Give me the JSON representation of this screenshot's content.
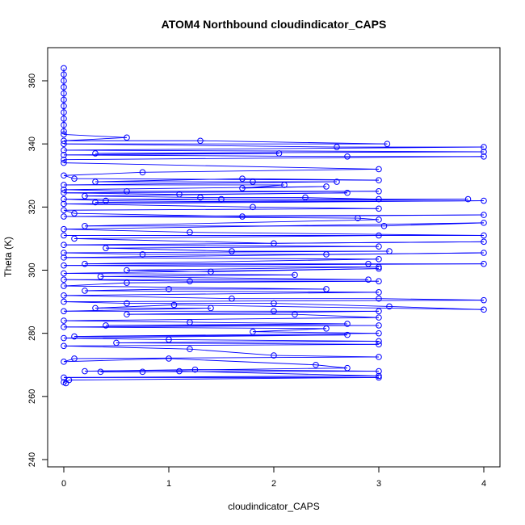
{
  "chart_data": {
    "type": "scatter",
    "title": "ATOM4 Northbound cloudindicator_CAPS",
    "xlabel": "cloudindicator_CAPS",
    "ylabel": "Theta (K)",
    "xlim": [
      0,
      4
    ],
    "ylim": [
      240,
      360
    ],
    "x_ticks": [
      "0",
      "1",
      "2",
      "3",
      "4"
    ],
    "y_ticks": [
      "240",
      "260",
      "280",
      "300",
      "320",
      "340",
      "360"
    ],
    "grid": false,
    "legend": "none",
    "series": [
      {
        "color": "#0000ff",
        "marker": "open-circle",
        "connected": true,
        "points": [
          [
            0,
            364
          ],
          [
            0,
            362
          ],
          [
            0,
            360
          ],
          [
            0,
            358
          ],
          [
            0,
            356
          ],
          [
            0,
            354
          ],
          [
            0,
            352
          ],
          [
            0,
            350
          ],
          [
            0,
            348
          ],
          [
            0,
            346
          ],
          [
            0,
            344
          ],
          [
            0,
            343
          ],
          [
            0.6,
            342
          ],
          [
            0,
            341
          ],
          [
            1.3,
            341
          ],
          [
            3.08,
            340
          ],
          [
            0,
            340
          ],
          [
            2.6,
            339
          ],
          [
            4,
            339
          ],
          [
            0,
            338
          ],
          [
            4,
            337.5
          ],
          [
            0.3,
            337
          ],
          [
            2.05,
            337
          ],
          [
            0,
            336.5
          ],
          [
            2.7,
            336
          ],
          [
            4,
            336
          ],
          [
            0,
            335
          ],
          [
            0,
            334
          ],
          [
            3,
            332
          ],
          [
            0.75,
            331
          ],
          [
            0,
            330
          ],
          [
            0.1,
            329
          ],
          [
            3,
            328.5
          ],
          [
            1.7,
            329
          ],
          [
            0.3,
            328
          ],
          [
            1.8,
            328
          ],
          [
            2.6,
            328
          ],
          [
            0,
            327
          ],
          [
            2.1,
            327
          ],
          [
            1.7,
            326
          ],
          [
            2.5,
            326.5
          ],
          [
            0,
            325.5
          ],
          [
            0.6,
            325
          ],
          [
            3,
            325
          ],
          [
            0,
            324.5
          ],
          [
            1.1,
            324
          ],
          [
            2.7,
            324.5
          ],
          [
            0.2,
            323.5
          ],
          [
            1.3,
            323
          ],
          [
            2.3,
            323
          ],
          [
            3,
            322.5
          ],
          [
            0,
            322.5
          ],
          [
            0.4,
            322
          ],
          [
            1.5,
            322.5
          ],
          [
            3.85,
            322.5
          ],
          [
            0.3,
            321.5
          ],
          [
            4,
            322
          ],
          [
            0,
            321
          ],
          [
            1.8,
            320
          ],
          [
            3,
            319.5
          ],
          [
            0,
            319
          ],
          [
            0.1,
            318
          ],
          [
            1.7,
            317
          ],
          [
            4,
            317.5
          ],
          [
            0,
            317
          ],
          [
            2.8,
            316.5
          ],
          [
            3,
            316
          ],
          [
            0.2,
            314
          ],
          [
            3.05,
            314
          ],
          [
            4,
            315
          ],
          [
            0,
            313
          ],
          [
            1.2,
            312
          ],
          [
            4,
            311
          ],
          [
            0,
            311
          ],
          [
            3,
            311
          ],
          [
            0.1,
            310
          ],
          [
            2,
            308.5
          ],
          [
            4,
            309
          ],
          [
            0,
            308
          ],
          [
            3,
            307.5
          ],
          [
            0.4,
            307
          ],
          [
            1.6,
            306
          ],
          [
            3.1,
            306
          ],
          [
            0,
            305.5
          ],
          [
            0.75,
            305
          ],
          [
            2.5,
            305
          ],
          [
            4,
            305.5
          ],
          [
            0,
            304
          ],
          [
            3,
            303.5
          ],
          [
            0.2,
            302
          ],
          [
            2.9,
            302
          ],
          [
            4,
            302
          ],
          [
            0,
            301.5
          ],
          [
            3,
            301
          ],
          [
            0.6,
            300
          ],
          [
            1.4,
            299.5
          ],
          [
            3,
            300.5
          ],
          [
            0,
            299
          ],
          [
            2.2,
            298.5
          ],
          [
            0.35,
            298
          ],
          [
            2.9,
            297
          ],
          [
            0,
            297
          ],
          [
            1.2,
            296.5
          ],
          [
            3,
            296.5
          ],
          [
            0.6,
            296
          ],
          [
            0,
            295
          ],
          [
            2.5,
            294
          ],
          [
            1,
            294
          ],
          [
            0.2,
            293.5
          ],
          [
            3,
            293
          ],
          [
            0,
            292
          ],
          [
            1.6,
            291
          ],
          [
            3,
            291
          ],
          [
            4,
            290.5
          ],
          [
            0,
            290
          ],
          [
            0.6,
            289.5
          ],
          [
            2,
            289.5
          ],
          [
            3.1,
            288.5
          ],
          [
            4,
            287.5
          ],
          [
            1.05,
            289
          ],
          [
            0.3,
            288
          ],
          [
            1.4,
            288
          ],
          [
            0,
            287
          ],
          [
            2,
            287
          ],
          [
            3,
            287
          ],
          [
            0.6,
            286
          ],
          [
            2.2,
            286
          ],
          [
            3,
            285
          ],
          [
            0,
            284
          ],
          [
            1.2,
            283.5
          ],
          [
            2.7,
            283
          ],
          [
            0.4,
            282.5
          ],
          [
            3,
            282.5
          ],
          [
            0,
            282
          ],
          [
            2.5,
            281.5
          ],
          [
            1.8,
            280.5
          ],
          [
            3,
            280
          ],
          [
            0.1,
            279
          ],
          [
            2.7,
            279.5
          ],
          [
            0,
            278.5
          ],
          [
            1,
            278
          ],
          [
            3,
            277.5
          ],
          [
            0.5,
            277
          ],
          [
            3,
            276.5
          ],
          [
            0,
            276
          ],
          [
            1.2,
            275
          ],
          [
            2,
            273
          ],
          [
            3,
            272.5
          ],
          [
            0.1,
            272
          ],
          [
            0,
            271
          ],
          [
            1,
            272
          ],
          [
            2.4,
            270
          ],
          [
            2.7,
            269
          ],
          [
            0.2,
            268
          ],
          [
            1.25,
            268.5
          ],
          [
            3,
            268
          ],
          [
            0.35,
            267.8
          ],
          [
            0.75,
            267.8
          ],
          [
            1.1,
            268
          ],
          [
            3,
            266.5
          ],
          [
            0,
            266
          ],
          [
            3,
            266
          ],
          [
            0.05,
            265.2
          ],
          [
            0,
            264.5
          ],
          [
            0.02,
            264.2
          ]
        ]
      }
    ]
  }
}
